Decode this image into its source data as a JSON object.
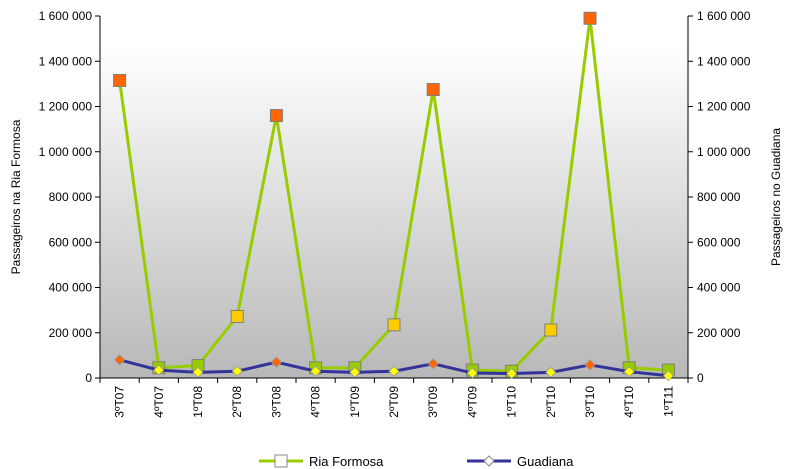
{
  "chart_data": {
    "type": "line",
    "categories": [
      "3ºT07",
      "4ºT07",
      "1ºT08",
      "2ºT08",
      "3ºT08",
      "4ºT08",
      "1ºT09",
      "2ºT09",
      "3ºT09",
      "4ºT09",
      "1ºT10",
      "2ºT10",
      "3ºT10",
      "4ºT10",
      "1ºT11"
    ],
    "series": [
      {
        "name": "Ria Formosa",
        "axis": "left",
        "line_color": "#99cc00",
        "values": [
          1315000,
          45000,
          55000,
          272000,
          1160000,
          45000,
          45000,
          235000,
          1275000,
          35000,
          30000,
          212000,
          1590000,
          45000,
          35000
        ]
      },
      {
        "name": "Guadiana",
        "axis": "right",
        "line_color": "#333399",
        "values": [
          80000,
          35000,
          25000,
          30000,
          70000,
          30000,
          25000,
          30000,
          63000,
          22000,
          20000,
          25000,
          58000,
          28000,
          10000
        ]
      }
    ],
    "ylabel_left": "Passageiros na Ria Formosa",
    "ylabel_right": "Passageiros no Guadiana",
    "ylim": [
      0,
      1600000
    ],
    "y_ticks": [
      "0",
      "200 000",
      "400 000",
      "600 000",
      "800 000",
      "1 000 000",
      "1 200 000",
      "1 400 000",
      "1 600 000"
    ],
    "marker_colors": {
      "peak": "#ff6600",
      "high": "#ffcc00",
      "low": "#99cc00",
      "guadiana_peak": "#ff6600",
      "guadiana_low": "#ffff00"
    },
    "legend_position": "bottom",
    "grid": false
  }
}
